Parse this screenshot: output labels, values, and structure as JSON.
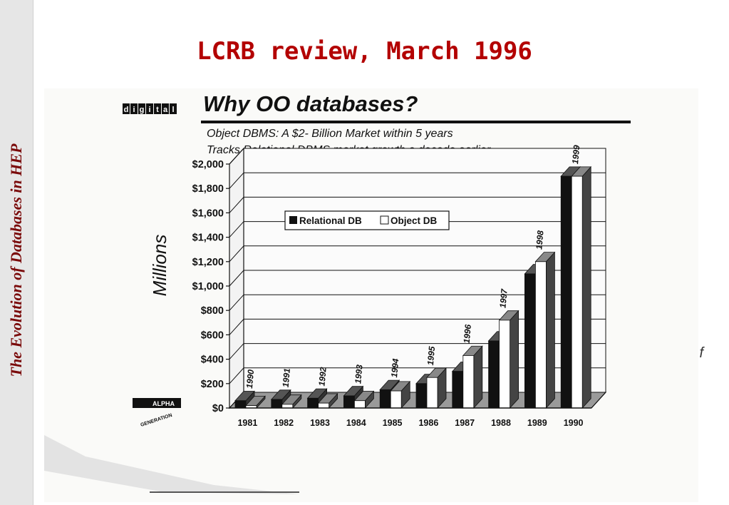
{
  "sidebar": {
    "vertical_title": "The Evolution of Databases in HEP"
  },
  "slide": {
    "title": "LCRB review, March 1996",
    "corner_text": "f"
  },
  "scan": {
    "logo_text": "digital",
    "heading": "Why OO databases?",
    "subtitle1": "Object DBMS: A $2- Billion Market within 5 years",
    "subtitle2": "Tracks Relational DBMS market growth a decade earlier",
    "alpha_logo_top": "ALPHA",
    "alpha_logo_bottom": "GENERATION"
  },
  "colors": {
    "title": "#b30000",
    "relational": "#111111",
    "object": "#ffffff",
    "sidebar": "#e6e6e6"
  },
  "chart_data": {
    "type": "bar",
    "title": "Why OO databases?",
    "ylabel": "Millions",
    "ylim": [
      0,
      2000
    ],
    "y_ticks": [
      "$0",
      "$200",
      "$400",
      "$600",
      "$800",
      "$1,000",
      "$1,200",
      "$1,400",
      "$1,600",
      "$1,800",
      "$2,000"
    ],
    "y_tick_values": [
      0,
      200,
      400,
      600,
      800,
      1000,
      1200,
      1400,
      1600,
      1800,
      2000
    ],
    "categories": [
      "1981",
      "1982",
      "1983",
      "1984",
      "1985",
      "1986",
      "1987",
      "1988",
      "1989",
      "1990"
    ],
    "object_year_labels": [
      "1990",
      "1991",
      "1992",
      "1993",
      "1994",
      "1995",
      "1996",
      "1997",
      "1998",
      "1999"
    ],
    "legend": [
      "Relational DB",
      "Object DB"
    ],
    "legend_position": "top-left",
    "series": [
      {
        "name": "Relational DB",
        "values": [
          60,
          70,
          80,
          100,
          150,
          200,
          300,
          550,
          1100,
          1900
        ]
      },
      {
        "name": "Object DB",
        "values": [
          20,
          30,
          40,
          60,
          140,
          250,
          430,
          720,
          1200,
          1900
        ]
      }
    ]
  }
}
